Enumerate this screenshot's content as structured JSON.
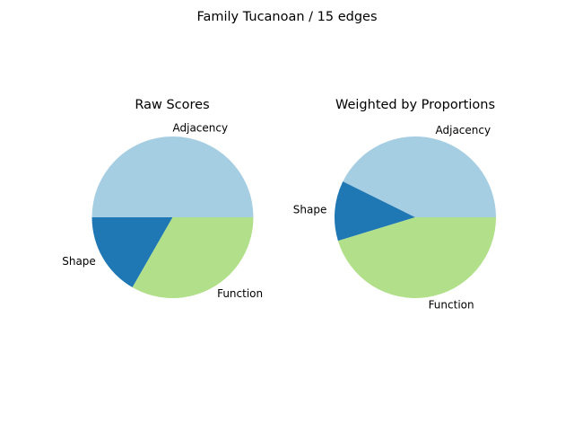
{
  "suptitle": "Family Tucanoan / 15 edges",
  "chart_data": [
    {
      "type": "pie",
      "title": "Raw Scores",
      "slices": [
        {
          "label": "Adjacency",
          "value": 0.5,
          "color": "#a6cee3"
        },
        {
          "label": "Shape",
          "value": 0.167,
          "color": "#1f78b4"
        },
        {
          "label": "Function",
          "value": 0.333,
          "color": "#b2df8a"
        }
      ],
      "start_angle": "3 o'clock",
      "direction": "counterclockwise"
    },
    {
      "type": "pie",
      "title": "Weighted by Proportions",
      "slices": [
        {
          "label": "Adjacency",
          "value": 0.427,
          "color": "#a6cee3"
        },
        {
          "label": "Shape",
          "value": 0.12,
          "color": "#1f78b4"
        },
        {
          "label": "Function",
          "value": 0.453,
          "color": "#b2df8a"
        }
      ],
      "start_angle": "3 o'clock",
      "direction": "counterclockwise"
    }
  ]
}
